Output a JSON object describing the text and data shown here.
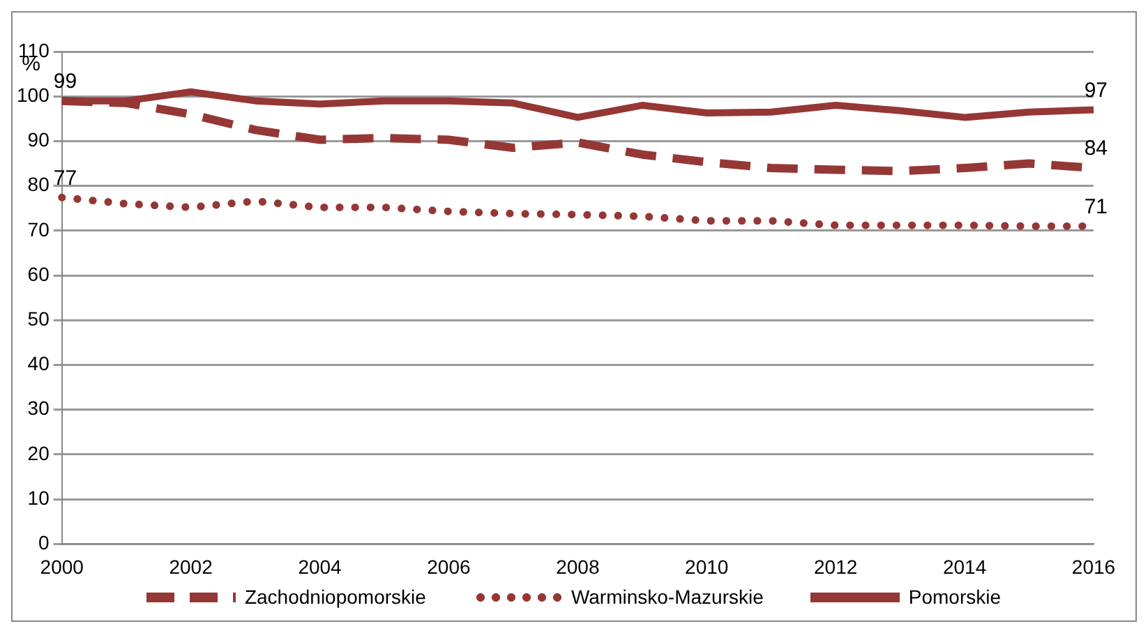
{
  "chart_data": {
    "type": "line",
    "ylabel": "%",
    "categories": [
      "2000",
      null,
      "2002",
      null,
      "2004",
      null,
      "2006",
      null,
      "2008",
      null,
      "2010",
      null,
      "2012",
      null,
      "2014",
      null,
      "2016"
    ],
    "series": [
      {
        "name": "Zachodniopomorskie",
        "color": "#953735",
        "line_style": "dashed",
        "values": [
          99,
          98.5,
          96,
          92.5,
          90.3,
          90.7,
          90.3,
          88.5,
          89.7,
          87,
          85.3,
          84,
          83.6,
          83.3,
          84,
          85,
          84
        ],
        "value_labels": [
          null,
          null,
          null,
          null,
          null,
          null,
          null,
          null,
          null,
          null,
          null,
          null,
          null,
          null,
          null,
          null,
          "84"
        ]
      },
      {
        "name": "Warminsko-Mazurskie",
        "color": "#953735",
        "line_style": "dotted",
        "values": [
          77.4,
          76,
          75.2,
          76.6,
          75.2,
          75.2,
          74.3,
          73.8,
          73.6,
          73.2,
          72.2,
          72.2,
          71.2,
          71.2,
          71.2,
          71,
          71
        ],
        "value_labels": [
          "77",
          null,
          null,
          null,
          null,
          null,
          null,
          null,
          null,
          null,
          null,
          null,
          null,
          null,
          null,
          null,
          "71"
        ]
      },
      {
        "name": "Pomorskie",
        "color": "#953735",
        "line_style": "solid",
        "values": [
          99,
          99,
          101,
          99,
          98.3,
          99,
          99,
          98.5,
          95.3,
          98,
          96.3,
          96.5,
          98,
          96.8,
          95.3,
          96.5,
          97
        ],
        "value_labels": [
          "99",
          null,
          null,
          null,
          null,
          null,
          null,
          null,
          null,
          null,
          null,
          null,
          null,
          null,
          null,
          null,
          "97"
        ]
      }
    ],
    "ylim": [
      0,
      110
    ],
    "yticks": [
      0,
      10,
      20,
      30,
      40,
      50,
      60,
      70,
      80,
      90,
      100,
      110
    ],
    "grid": "y",
    "legend": "bottom",
    "marker": "none"
  }
}
